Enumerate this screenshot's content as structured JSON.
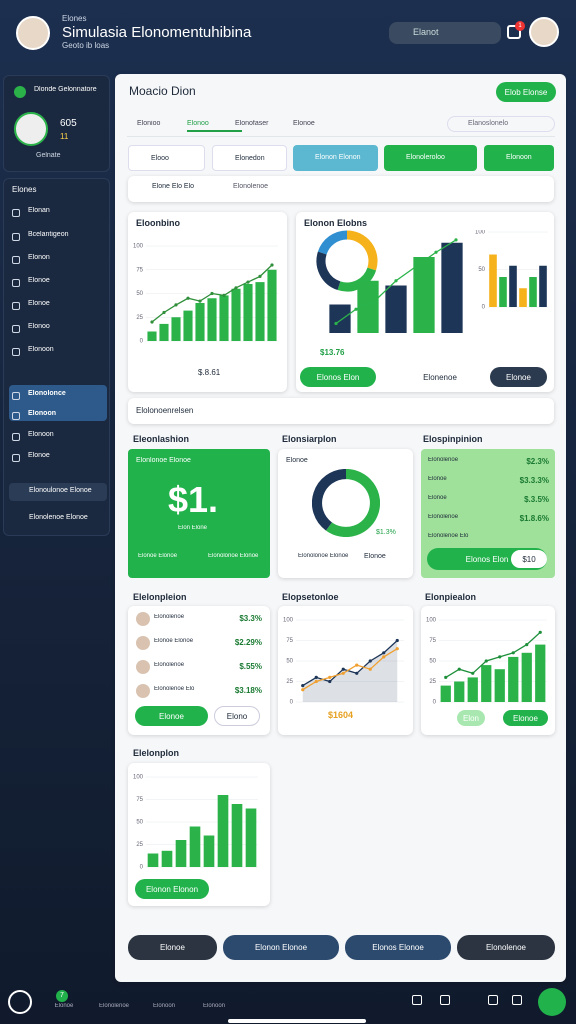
{
  "header": {
    "brand": "Elones",
    "title": "Simulasia Elonomentuhibina",
    "subtitle": "Geoto ib loas",
    "search": "Elanot",
    "badge": "1"
  },
  "sidebar": {
    "profile_title": "Dlonde Gelonnatore",
    "stat_1": "605",
    "stat_2": "11",
    "profile_name": "Gelnate",
    "section": "Elones",
    "nav": [
      "Elonan",
      "Bcelantigeon",
      "Elonon",
      "Elonoe",
      "Elonoe",
      "Elonoo",
      "Elonoon",
      "Elonolonce",
      "Elonoon",
      "Elonoon",
      "Elonoe"
    ],
    "links": [
      "Elonoulonoe Elonoe",
      "Elonolenoe Elonoe"
    ]
  },
  "main": {
    "title": "Moacio Dion",
    "action": "Elob Elonse",
    "tabs": [
      "Elonioo",
      "Elonoo",
      "Elonofaser",
      "Elonoe"
    ],
    "search": "Elanoslonelo",
    "chips": [
      "Elooo",
      "Elonedon",
      "Elonon Elonon",
      "Elonoleroloo",
      "Elonoon"
    ],
    "select_label": "Elone Elo Elo",
    "select_tag": "Elonolenoe",
    "collapse": "Elolonoenrelsen",
    "bottom_buttons": [
      "Elonoe",
      "Elonon Elonoe",
      "Elonos Elonoe",
      "Elonolenoe"
    ]
  },
  "cards": {
    "a": {
      "title": "Eloonbino",
      "value": "$.8.61"
    },
    "b": {
      "title": "Elonon Elobns",
      "value": "$13.76",
      "buttons": [
        "Elonos Elon",
        "Elonenoe",
        "Elonoe"
      ]
    },
    "c": {
      "heading": "Eleonlashion",
      "title": "Elonlonoe Elonoe",
      "value": "$1.",
      "sub": "Elon Elone",
      "notes": [
        "Elonoe Elonoe",
        "Elonolonoe Elonoe"
      ]
    },
    "d": {
      "heading": "Elonsiarplon",
      "title": "Elonoe",
      "value": "$1.3%",
      "foot": "Elonolonoe Elonoe",
      "foot_value": "Elonoe"
    },
    "e": {
      "heading": "Elospinpinion",
      "rows": [
        [
          "Elonolenoe",
          "$2.3%"
        ],
        [
          "Elonoe",
          "$3.3.3%"
        ],
        [
          "Elonoe",
          "$.3.5%"
        ],
        [
          "Elonolenoe",
          "$1.8.6%"
        ],
        [
          "Elonolenoe Elo",
          ""
        ]
      ],
      "button": "Elonos Elon",
      "button_value": "$10"
    },
    "f": {
      "heading": "Elelonpleion",
      "rows": [
        [
          "Elonolenoe",
          "$3.3%"
        ],
        [
          "Elonoe Elonoe",
          "$2.29%"
        ],
        [
          "Elonolenoe",
          "$.55%"
        ],
        [
          "Elonolenoe Elo",
          "$3.18%"
        ]
      ],
      "buttons": [
        "Elonoe",
        "Elono"
      ]
    },
    "g": {
      "heading": "Elopsetonloe",
      "value": "$1604"
    },
    "h": {
      "heading": "Elonpiealon",
      "buttons": [
        "Elon",
        "Elonoe"
      ]
    },
    "i": {
      "heading": "Elelonplon",
      "button": "Elonon Elonon"
    }
  },
  "charts": {
    "a": {
      "type": "bar-line",
      "ylim": [
        0,
        100
      ],
      "yticks": [
        0,
        25,
        50,
        75,
        100
      ],
      "color": "#2bb34a",
      "line_color": "#2f8f3a",
      "values": [
        10,
        18,
        25,
        32,
        40,
        45,
        48,
        55,
        60,
        62,
        75
      ],
      "line": [
        20,
        30,
        38,
        45,
        42,
        50,
        48,
        56,
        62,
        68,
        80
      ]
    },
    "b_donut": {
      "type": "donut",
      "values": [
        30,
        25,
        25,
        20
      ],
      "colors": [
        "#f5b21b",
        "#2bb34a",
        "#1d3557",
        "#2f8fd0"
      ]
    },
    "b_bars": {
      "type": "bar-line",
      "ylim": [
        0,
        100
      ],
      "colors": [
        "#1d3557",
        "#2bb34a"
      ],
      "color": "#1d3557",
      "line_color": "#2bb34a",
      "values": [
        30,
        55,
        50,
        80,
        95
      ],
      "line": [
        10,
        25,
        35,
        55,
        70,
        85,
        98
      ]
    },
    "b_right": {
      "type": "bar",
      "ylim": [
        0,
        100
      ],
      "yticks": [
        0,
        50,
        100
      ],
      "colors": [
        "#f5b21b",
        "#2bb34a",
        "#1d3557"
      ],
      "values": [
        70,
        40,
        55,
        25,
        40,
        55
      ]
    },
    "d_donut": {
      "type": "donut",
      "values": [
        60,
        40
      ],
      "colors": [
        "#2bb34a",
        "#1d3557"
      ]
    },
    "g": {
      "type": "area",
      "ylim": [
        0,
        100
      ],
      "yticks": [
        0,
        25,
        50,
        75,
        100
      ],
      "line_color": "#1d3557",
      "line2_color": "#f0a030",
      "values": [
        20,
        30,
        25,
        40,
        35,
        50,
        60,
        75
      ],
      "line2": [
        15,
        25,
        30,
        35,
        45,
        40,
        55,
        65
      ]
    },
    "h": {
      "type": "bar-line",
      "ylim": [
        0,
        100
      ],
      "yticks": [
        0,
        25,
        50,
        75,
        100
      ],
      "color": "#2bb34a",
      "line_color": "#1d8f3a",
      "values": [
        20,
        25,
        30,
        45,
        40,
        55,
        60,
        70
      ],
      "line": [
        30,
        40,
        35,
        50,
        55,
        60,
        70,
        85
      ]
    },
    "i": {
      "type": "bar",
      "ylim": [
        0,
        100
      ],
      "yticks": [
        0,
        25,
        50,
        75,
        100
      ],
      "colors": [
        "#2bb34a"
      ],
      "values": [
        15,
        18,
        30,
        45,
        35,
        80,
        70,
        65
      ]
    }
  },
  "bottom_nav": {
    "items": [
      "Elonoe",
      "Elonolenoe",
      "Elonoon",
      "Elonoon"
    ],
    "badge": "7"
  }
}
